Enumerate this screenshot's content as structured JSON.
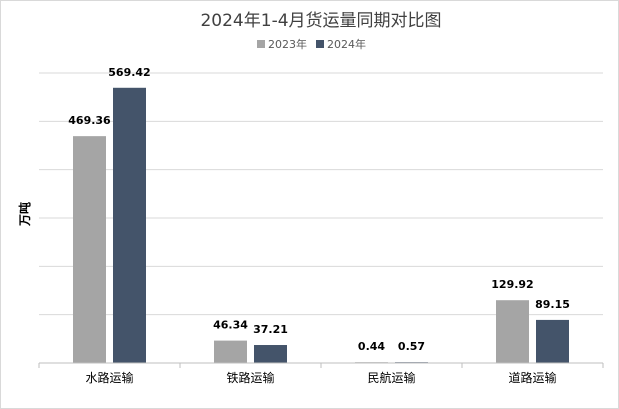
{
  "chart_data": {
    "type": "bar",
    "title": "2024年1-4月货运量同期对比图",
    "ylabel": "万吨",
    "xlabel": "",
    "categories": [
      "水路运输",
      "铁路运输",
      "民航运输",
      "道路运输"
    ],
    "series": [
      {
        "name": "2023年",
        "values": [
          469.36,
          46.34,
          0.44,
          129.92
        ],
        "color": "#a5a5a5"
      },
      {
        "name": "2024年",
        "values": [
          569.42,
          37.21,
          0.57,
          89.15
        ],
        "color": "#44546a"
      }
    ],
    "ylim": [
      0,
      600
    ],
    "grid": true,
    "legend": "top-center"
  }
}
